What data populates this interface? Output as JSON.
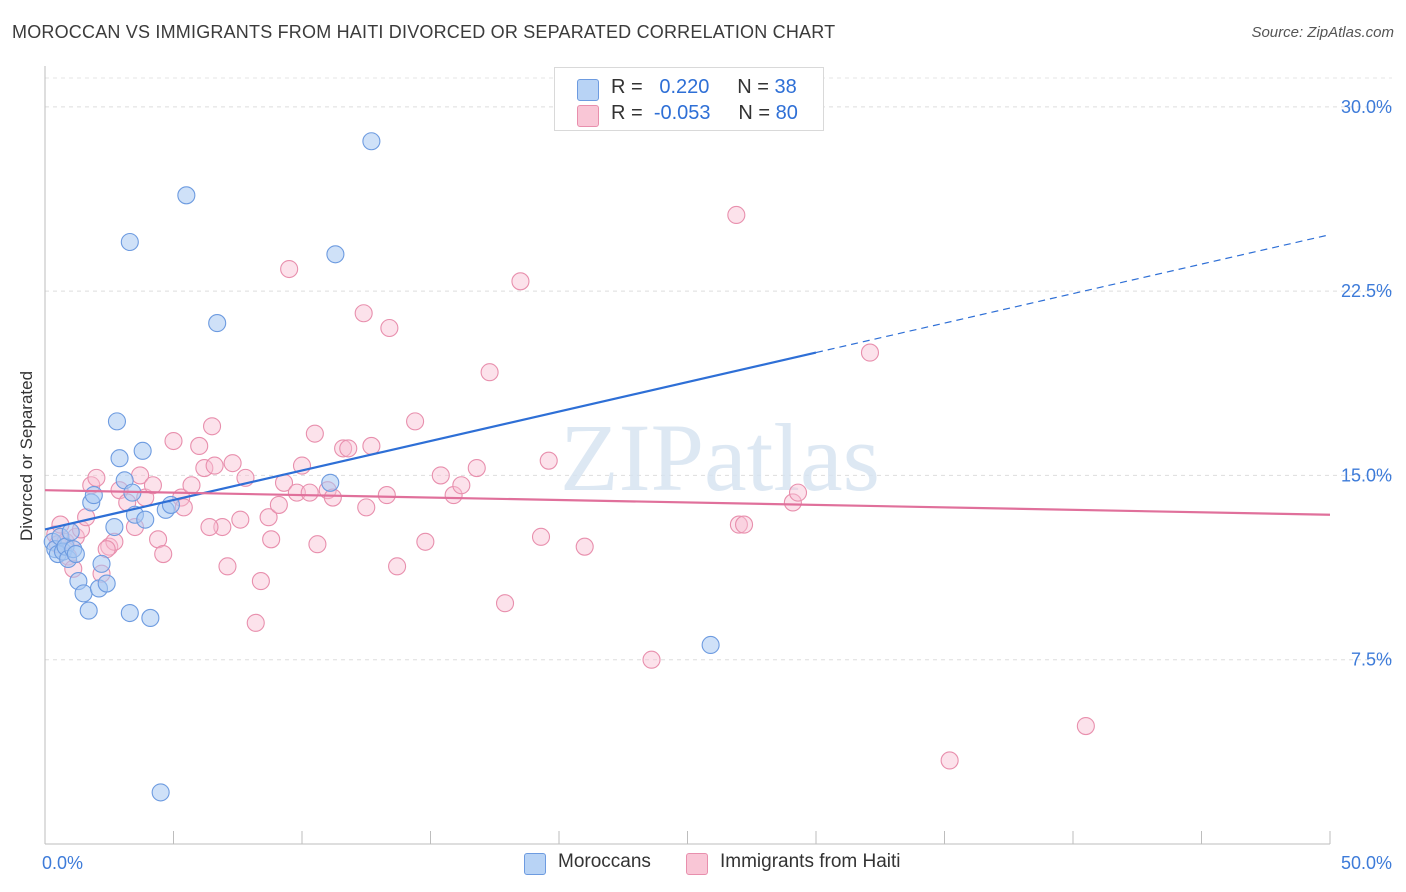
{
  "title": "MOROCCAN VS IMMIGRANTS FROM HAITI DIVORCED OR SEPARATED CORRELATION CHART",
  "source": "Source: ZipAtlas.com",
  "watermark": "ZIPatlas",
  "legend_top": [
    {
      "r_label": "R =",
      "r_value": "0.220",
      "n_label": "N =",
      "n_value": "38",
      "color": "#b8d3f5",
      "border": "#6d9be0"
    },
    {
      "r_label": "R =",
      "r_value": "-0.053",
      "n_label": "N =",
      "n_value": "80",
      "color": "#f9c6d6",
      "border": "#e88fad"
    }
  ],
  "legend_bottom": [
    {
      "label": "Moroccans",
      "color": "#b8d3f5",
      "border": "#6d9be0"
    },
    {
      "label": "Immigrants from Haiti",
      "color": "#f9c6d6",
      "border": "#e88fad"
    }
  ],
  "chart_data": {
    "type": "scatter",
    "title": "MOROCCAN VS IMMIGRANTS FROM HAITI DIVORCED OR SEPARATED CORRELATION CHART",
    "xlabel": "",
    "ylabel": "Divorced or Separated",
    "xlim": [
      0,
      50
    ],
    "ylim": [
      0,
      31.5
    ],
    "x_tick_labels": [
      "0.0%",
      "50.0%"
    ],
    "y_ticks": [
      7.5,
      15.0,
      22.5,
      30.0
    ],
    "y_tick_labels": [
      "7.5%",
      "15.0%",
      "22.5%",
      "30.0%"
    ],
    "grid": true,
    "colors": {
      "moroccans": "#2e6fd6",
      "haiti": "#e0709b",
      "tick_label": "#3d7bd9"
    },
    "series": [
      {
        "name": "Moroccans",
        "points": [
          [
            0.3,
            12.3
          ],
          [
            0.4,
            12.0
          ],
          [
            0.5,
            11.8
          ],
          [
            0.6,
            12.5
          ],
          [
            0.7,
            11.9
          ],
          [
            0.8,
            12.1
          ],
          [
            0.9,
            11.6
          ],
          [
            1.0,
            12.7
          ],
          [
            1.1,
            12.0
          ],
          [
            1.2,
            11.8
          ],
          [
            1.3,
            10.7
          ],
          [
            1.5,
            10.2
          ],
          [
            1.7,
            9.5
          ],
          [
            1.8,
            13.9
          ],
          [
            1.9,
            14.2
          ],
          [
            2.1,
            10.4
          ],
          [
            2.2,
            11.4
          ],
          [
            2.4,
            10.6
          ],
          [
            2.7,
            12.9
          ],
          [
            2.8,
            17.2
          ],
          [
            2.9,
            15.7
          ],
          [
            3.1,
            14.8
          ],
          [
            3.3,
            24.5
          ],
          [
            3.3,
            9.4
          ],
          [
            3.5,
            13.4
          ],
          [
            3.4,
            14.3
          ],
          [
            3.8,
            16.0
          ],
          [
            3.9,
            13.2
          ],
          [
            4.1,
            9.2
          ],
          [
            4.5,
            2.1
          ],
          [
            4.7,
            13.6
          ],
          [
            5.5,
            26.4
          ],
          [
            6.7,
            21.2
          ],
          [
            11.1,
            14.7
          ],
          [
            12.7,
            28.6
          ],
          [
            11.3,
            24.0
          ],
          [
            25.9,
            8.1
          ],
          [
            4.9,
            13.8
          ]
        ]
      },
      {
        "name": "Immigrants from Haiti",
        "points": [
          [
            0.4,
            12.6
          ],
          [
            0.5,
            12.2
          ],
          [
            0.6,
            13.0
          ],
          [
            0.8,
            12.3
          ],
          [
            0.9,
            11.7
          ],
          [
            1.1,
            11.2
          ],
          [
            1.2,
            12.5
          ],
          [
            1.4,
            12.8
          ],
          [
            1.6,
            13.3
          ],
          [
            1.8,
            14.6
          ],
          [
            2.0,
            14.9
          ],
          [
            2.2,
            11.0
          ],
          [
            2.5,
            12.1
          ],
          [
            2.7,
            12.3
          ],
          [
            2.9,
            14.4
          ],
          [
            3.2,
            13.9
          ],
          [
            3.5,
            12.9
          ],
          [
            3.7,
            15.0
          ],
          [
            3.9,
            14.1
          ],
          [
            4.2,
            14.6
          ],
          [
            4.4,
            12.4
          ],
          [
            4.6,
            11.8
          ],
          [
            5.0,
            16.4
          ],
          [
            5.3,
            14.1
          ],
          [
            5.4,
            13.7
          ],
          [
            5.7,
            14.6
          ],
          [
            6.0,
            16.2
          ],
          [
            6.2,
            15.3
          ],
          [
            6.5,
            17.0
          ],
          [
            6.6,
            15.4
          ],
          [
            6.9,
            12.9
          ],
          [
            7.1,
            11.3
          ],
          [
            7.3,
            15.5
          ],
          [
            7.6,
            13.2
          ],
          [
            7.8,
            14.9
          ],
          [
            8.2,
            9.0
          ],
          [
            8.4,
            10.7
          ],
          [
            8.7,
            13.3
          ],
          [
            8.8,
            12.4
          ],
          [
            9.1,
            13.8
          ],
          [
            9.3,
            14.7
          ],
          [
            9.5,
            23.4
          ],
          [
            9.8,
            14.3
          ],
          [
            10.0,
            15.4
          ],
          [
            10.3,
            14.3
          ],
          [
            10.5,
            16.7
          ],
          [
            10.6,
            12.2
          ],
          [
            11.0,
            14.4
          ],
          [
            11.2,
            14.1
          ],
          [
            11.6,
            16.1
          ],
          [
            11.8,
            16.1
          ],
          [
            12.4,
            21.6
          ],
          [
            12.5,
            13.7
          ],
          [
            12.7,
            16.2
          ],
          [
            13.3,
            14.2
          ],
          [
            13.4,
            21.0
          ],
          [
            13.7,
            11.3
          ],
          [
            14.4,
            17.2
          ],
          [
            14.8,
            12.3
          ],
          [
            15.4,
            15.0
          ],
          [
            15.9,
            14.2
          ],
          [
            16.2,
            14.6
          ],
          [
            16.8,
            15.3
          ],
          [
            17.3,
            19.2
          ],
          [
            17.9,
            9.8
          ],
          [
            18.5,
            22.9
          ],
          [
            19.3,
            12.5
          ],
          [
            19.6,
            15.6
          ],
          [
            21.0,
            12.1
          ],
          [
            23.6,
            7.5
          ],
          [
            26.9,
            25.6
          ],
          [
            27.0,
            13.0
          ],
          [
            27.2,
            13.0
          ],
          [
            29.1,
            13.9
          ],
          [
            29.3,
            14.3
          ],
          [
            32.1,
            20.0
          ],
          [
            35.2,
            3.4
          ],
          [
            40.5,
            4.8
          ],
          [
            6.4,
            12.9
          ],
          [
            2.4,
            12.0
          ]
        ]
      }
    ],
    "trend_lines": [
      {
        "series": "Moroccans",
        "x_start": 0.0,
        "y_start": 12.8,
        "x_solid_end": 30.0,
        "y_solid_end": 20.0,
        "x_end": 50.0,
        "y_end": 24.8,
        "dashed_after": 30.0
      },
      {
        "series": "Immigrants from Haiti",
        "x_start": 0.0,
        "y_start": 14.4,
        "x_end": 50.0,
        "y_end": 13.4
      }
    ]
  }
}
